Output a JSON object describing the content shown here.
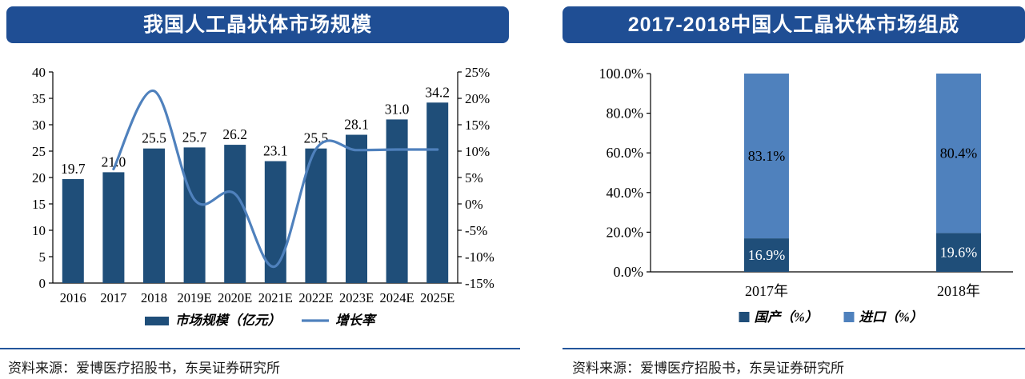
{
  "panels": {
    "left": {
      "title": "我国人工晶状体市场规模",
      "source": "资料来源：爱博医疗招股书，东吴证券研究所"
    },
    "right": {
      "title": "2017-2018中国人工晶状体市场组成",
      "source": "资料来源：爱博医疗招股书，东吴证券研究所"
    }
  },
  "colors": {
    "title_bg": "#1F4E94",
    "bar_dark": "#1F4E79",
    "bar_light": "#4F81BD",
    "line": "#4F81BD",
    "divider": "#23559B",
    "axis": "#000000",
    "label_on_dark": "#ffffff",
    "label_on_light": "#000000"
  },
  "chart_data": [
    {
      "type": "bar",
      "subtype": "bar+line-combo",
      "title": "我国人工晶状体市场规模",
      "categories": [
        "2016",
        "2017",
        "2018",
        "2019E",
        "2020E",
        "2021E",
        "2022E",
        "2023E",
        "2024E",
        "2025E"
      ],
      "series": [
        {
          "name": "市场规模（亿元）",
          "type": "bar",
          "axis": "left",
          "values": [
            19.7,
            21.0,
            25.5,
            25.7,
            26.2,
            23.1,
            25.5,
            28.1,
            31.0,
            34.2
          ],
          "labels": [
            "19.7",
            "21.0",
            "25.5",
            "25.7",
            "26.2",
            "23.1",
            "25.5",
            "28.1",
            "31.0",
            "34.2"
          ]
        },
        {
          "name": "增长率",
          "type": "line",
          "axis": "right",
          "values": [
            null,
            6.6,
            21.4,
            0.8,
            1.9,
            -11.8,
            10.4,
            10.2,
            10.3,
            10.3
          ]
        }
      ],
      "left_axis": {
        "min": 0,
        "max": 40,
        "step": 5,
        "ticks": [
          "0",
          "5",
          "10",
          "15",
          "20",
          "25",
          "30",
          "35",
          "40"
        ]
      },
      "right_axis": {
        "min": -15,
        "max": 25,
        "step": 5,
        "ticks": [
          "-15%",
          "-10%",
          "-5%",
          "0%",
          "5%",
          "10%",
          "15%",
          "20%",
          "25%"
        ]
      },
      "legend": [
        "市场规模（亿元）",
        "增长率"
      ],
      "grid": false,
      "legend_position": "bottom"
    },
    {
      "type": "bar",
      "subtype": "stacked-100",
      "title": "2017-2018中国人工晶状体市场组成",
      "categories": [
        "2017年",
        "2018年"
      ],
      "series": [
        {
          "name": "国产（%）",
          "values": [
            16.9,
            19.6
          ],
          "labels": [
            "16.9%",
            "19.6%"
          ]
        },
        {
          "name": "进口（%）",
          "values": [
            83.1,
            80.4
          ],
          "labels": [
            "83.1%",
            "80.4%"
          ]
        }
      ],
      "y_axis": {
        "min": 0,
        "max": 100,
        "step": 20,
        "ticks": [
          "0.0%",
          "20.0%",
          "40.0%",
          "60.0%",
          "80.0%",
          "100.0%"
        ]
      },
      "legend": [
        "国产（%）",
        "进口（%）"
      ],
      "grid": false,
      "legend_position": "bottom"
    }
  ]
}
